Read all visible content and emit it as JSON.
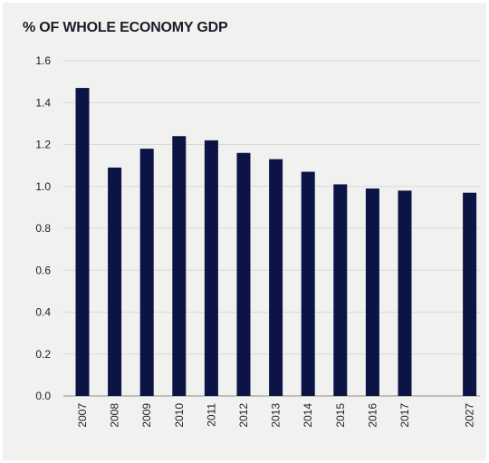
{
  "chart_data": {
    "type": "bar",
    "title": "% OF WHOLE ECONOMY GDP",
    "categories": [
      "2007",
      "2008",
      "2009",
      "2010",
      "2011",
      "2012",
      "2013",
      "2014",
      "2015",
      "2016",
      "2017",
      "2027"
    ],
    "values": [
      1.47,
      1.09,
      1.18,
      1.24,
      1.22,
      1.16,
      1.13,
      1.07,
      1.01,
      0.99,
      0.98,
      0.97
    ],
    "ylim": [
      0,
      1.6
    ],
    "yticks": [
      "0.0",
      "0.2",
      "0.4",
      "0.6",
      "0.8",
      "1.0",
      "1.2",
      "1.4",
      "1.6"
    ],
    "xlabel": "",
    "ylabel": "",
    "grid": true,
    "gap_before_last": true,
    "colors": {
      "bar": "#0c1446",
      "grid": "#d9d9d9",
      "background": "#f1f1f0",
      "text": "#1c1c28"
    }
  }
}
